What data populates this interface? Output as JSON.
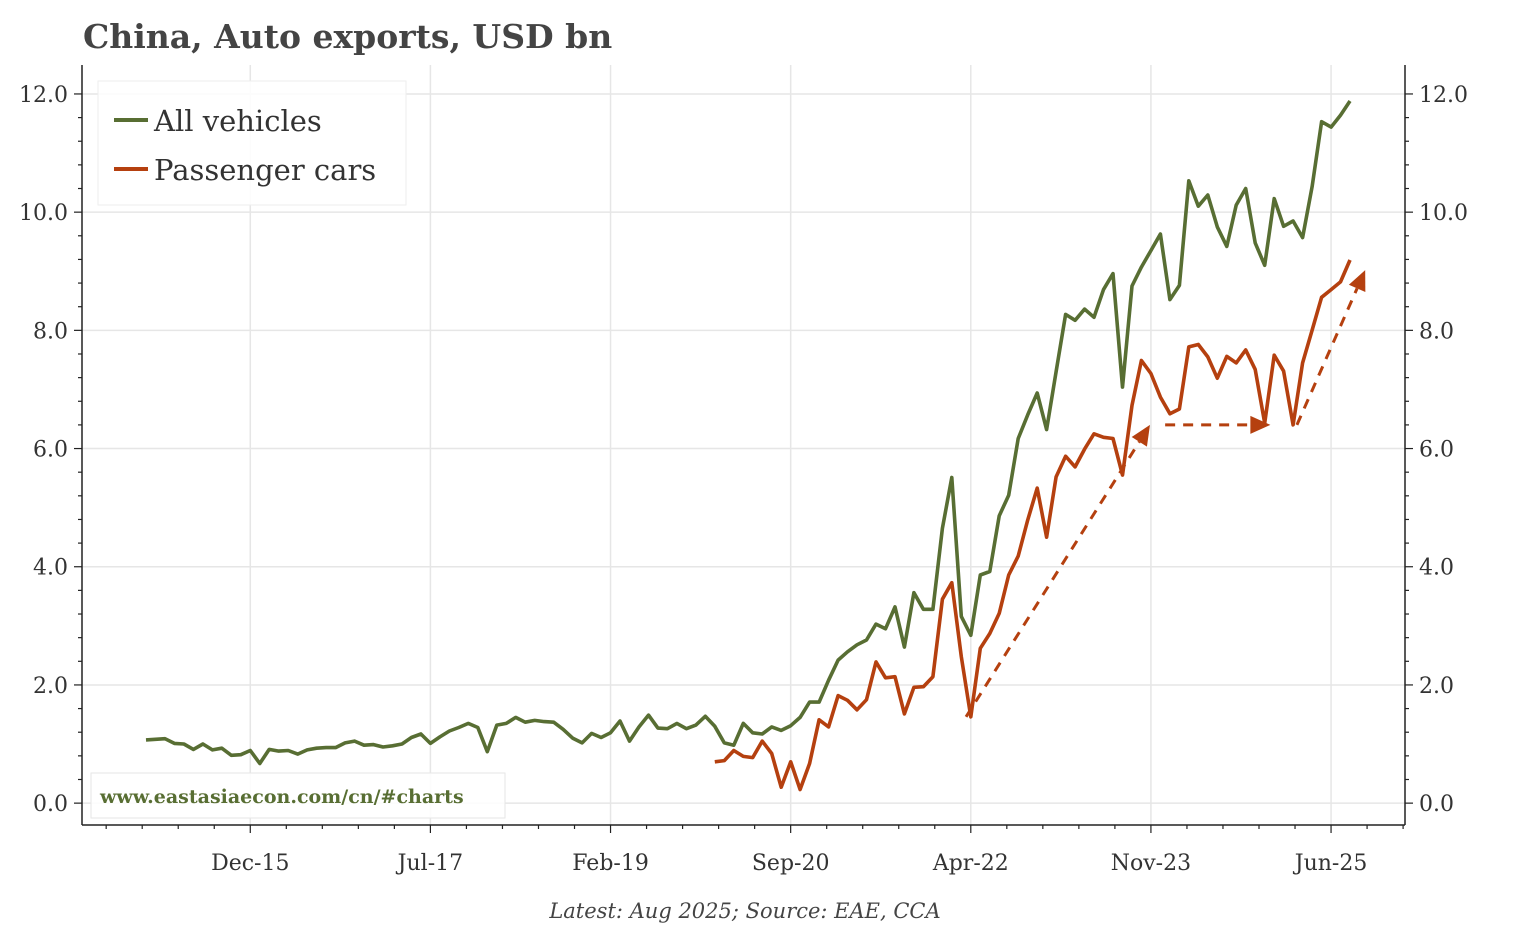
{
  "chart_data": {
    "type": "line",
    "title": "China, Auto exports, USD bn",
    "x_unit": "months since Jan-2015",
    "xlim": [
      -6.75,
      132.8
    ],
    "ylim": [
      -0.37,
      12.49
    ],
    "x_ticks": [
      {
        "m": 11,
        "label": "Dec-15"
      },
      {
        "m": 30,
        "label": "Jul-17"
      },
      {
        "m": 49,
        "label": "Feb-19"
      },
      {
        "m": 68,
        "label": "Sep-20"
      },
      {
        "m": 87,
        "label": "Apr-22"
      },
      {
        "m": 106,
        "label": "Nov-23"
      },
      {
        "m": 125,
        "label": "Jun-25"
      }
    ],
    "y_ticks": [
      {
        "v": 0,
        "label": "0.0"
      },
      {
        "v": 2,
        "label": "2.0"
      },
      {
        "v": 4,
        "label": "4.0"
      },
      {
        "v": 6,
        "label": "6.0"
      },
      {
        "v": 8,
        "label": "8.0"
      },
      {
        "v": 10,
        "label": "10.0"
      },
      {
        "v": 12,
        "label": "12.0"
      }
    ],
    "grid": true,
    "legend_position": "top-left",
    "series": [
      {
        "name": "All vehicles",
        "color": "#586e33",
        "start": 0,
        "values": [
          1.07,
          1.08,
          1.09,
          1.01,
          1.0,
          0.91,
          1.0,
          0.9,
          0.93,
          0.81,
          0.82,
          0.89,
          0.67,
          0.91,
          0.88,
          0.89,
          0.83,
          0.9,
          0.93,
          0.94,
          0.94,
          1.02,
          1.05,
          0.98,
          0.99,
          0.95,
          0.97,
          1.0,
          1.11,
          1.17,
          1.01,
          1.12,
          1.22,
          1.28,
          1.35,
          1.28,
          0.87,
          1.32,
          1.35,
          1.45,
          1.37,
          1.4,
          1.38,
          1.37,
          1.25,
          1.1,
          1.02,
          1.18,
          1.11,
          1.19,
          1.39,
          1.05,
          1.29,
          1.49,
          1.27,
          1.26,
          1.35,
          1.26,
          1.32,
          1.47,
          1.3,
          1.02,
          0.98,
          1.35,
          1.19,
          1.17,
          1.29,
          1.23,
          1.31,
          1.45,
          1.71,
          1.71,
          2.08,
          2.42,
          2.56,
          2.68,
          2.76,
          3.03,
          2.95,
          3.32,
          2.64,
          3.56,
          3.28,
          3.28,
          4.65,
          5.51,
          3.16,
          2.84,
          3.86,
          3.92,
          4.86,
          5.21,
          6.17,
          6.57,
          6.94,
          6.32,
          7.3,
          8.27,
          8.17,
          8.36,
          8.22,
          8.69,
          8.96,
          7.04,
          8.75,
          9.07,
          9.35,
          9.63,
          8.52,
          8.76,
          10.53,
          10.1,
          10.29,
          9.75,
          9.42,
          10.12,
          10.4,
          9.48,
          9.1,
          10.23,
          9.76,
          9.85,
          9.57,
          10.43,
          11.53,
          11.44,
          11.64,
          11.88
        ]
      },
      {
        "name": "Passenger cars",
        "color": "#b5400f",
        "start": 60,
        "values": [
          0.7,
          0.72,
          0.89,
          0.79,
          0.77,
          1.05,
          0.84,
          0.27,
          0.7,
          0.23,
          0.67,
          1.41,
          1.29,
          1.82,
          1.74,
          1.58,
          1.75,
          2.39,
          2.12,
          2.14,
          1.51,
          1.96,
          1.97,
          2.14,
          3.45,
          3.73,
          2.48,
          1.46,
          2.62,
          2.87,
          3.21,
          3.86,
          4.18,
          4.79,
          5.33,
          4.5,
          5.52,
          5.87,
          5.69,
          5.99,
          6.25,
          6.19,
          6.17,
          5.55,
          6.73,
          7.49,
          7.27,
          6.87,
          6.59,
          6.67,
          7.72,
          7.76,
          7.55,
          7.19,
          7.56,
          7.45,
          7.67,
          7.34,
          6.43,
          7.58,
          7.31,
          6.4,
          7.45,
          8.0,
          8.56,
          8.69,
          8.82,
          9.19
        ]
      }
    ],
    "annotations": [
      {
        "x0": 86.5,
        "y0": 1.46,
        "x1": 105.9,
        "y1": 6.4
      },
      {
        "x0": 107.5,
        "y0": 6.4,
        "x1": 118.6,
        "y1": 6.4
      },
      {
        "x0": 121.4,
        "y0": 6.4,
        "x1": 128.6,
        "y1": 9.02
      }
    ],
    "annotation_color": "#b5400f"
  },
  "watermark": "www.eastasiaecon.com/cn/#charts",
  "footer": "Latest: Aug 2025; Source: EAE, CCA"
}
